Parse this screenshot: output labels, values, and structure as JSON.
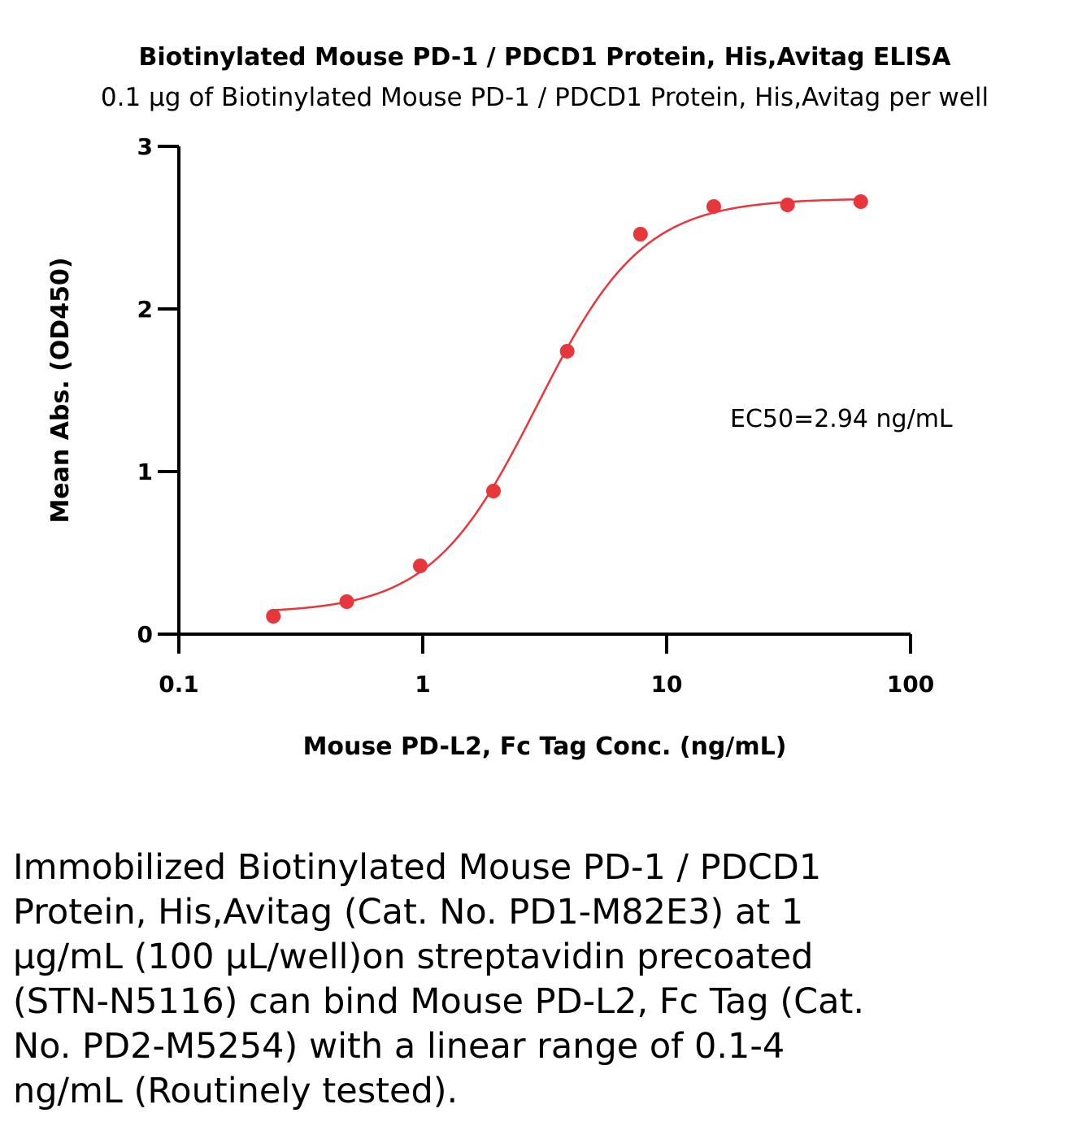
{
  "chart_data": {
    "type": "scatter",
    "title": "Biotinylated Mouse PD-1 / PDCD1 Protein, His,Avitag ELISA",
    "subtitle": "0.1 μg of Biotinylated Mouse PD-1 / PDCD1 Protein, His,Avitag per well",
    "xlabel": "Mouse PD-L2, Fc Tag Conc. (ng/mL)",
    "ylabel": "Mean Abs. (OD450)",
    "x_scale": "log",
    "xlim": [
      0.1,
      100
    ],
    "ylim": [
      0,
      3
    ],
    "x_ticks": [
      0.1,
      1,
      10,
      100
    ],
    "x_tick_labels": [
      "0.1",
      "1",
      "10",
      "100"
    ],
    "y_ticks": [
      0,
      1,
      2,
      3
    ],
    "y_tick_labels": [
      "0",
      "1",
      "2",
      "3"
    ],
    "grid": false,
    "color": "#e8373c",
    "series": [
      {
        "x": [
          0.244,
          0.488,
          0.977,
          1.95,
          3.91,
          7.81,
          15.6,
          31.3,
          62.5
        ],
        "y": [
          0.11,
          0.2,
          0.42,
          0.88,
          1.74,
          2.46,
          2.63,
          2.64,
          2.66
        ]
      }
    ],
    "fit": {
      "model": "4PL",
      "bottom": 0.13,
      "top": 2.68,
      "ec50": 2.94,
      "hill": 2.0
    },
    "annotation": "EC50=2.94 ng/mL"
  },
  "caption": "Immobilized Biotinylated Mouse PD-1 / PDCD1 Protein, His,Avitag (Cat. No. PD1-M82E3) at 1 μg/mL (100 μL/well)on streptavidin precoated (STN-N5116) can bind Mouse PD-L2, Fc Tag (Cat. No. PD2-M5254) with a linear range of 0.1-4 ng/mL (Routinely tested)."
}
